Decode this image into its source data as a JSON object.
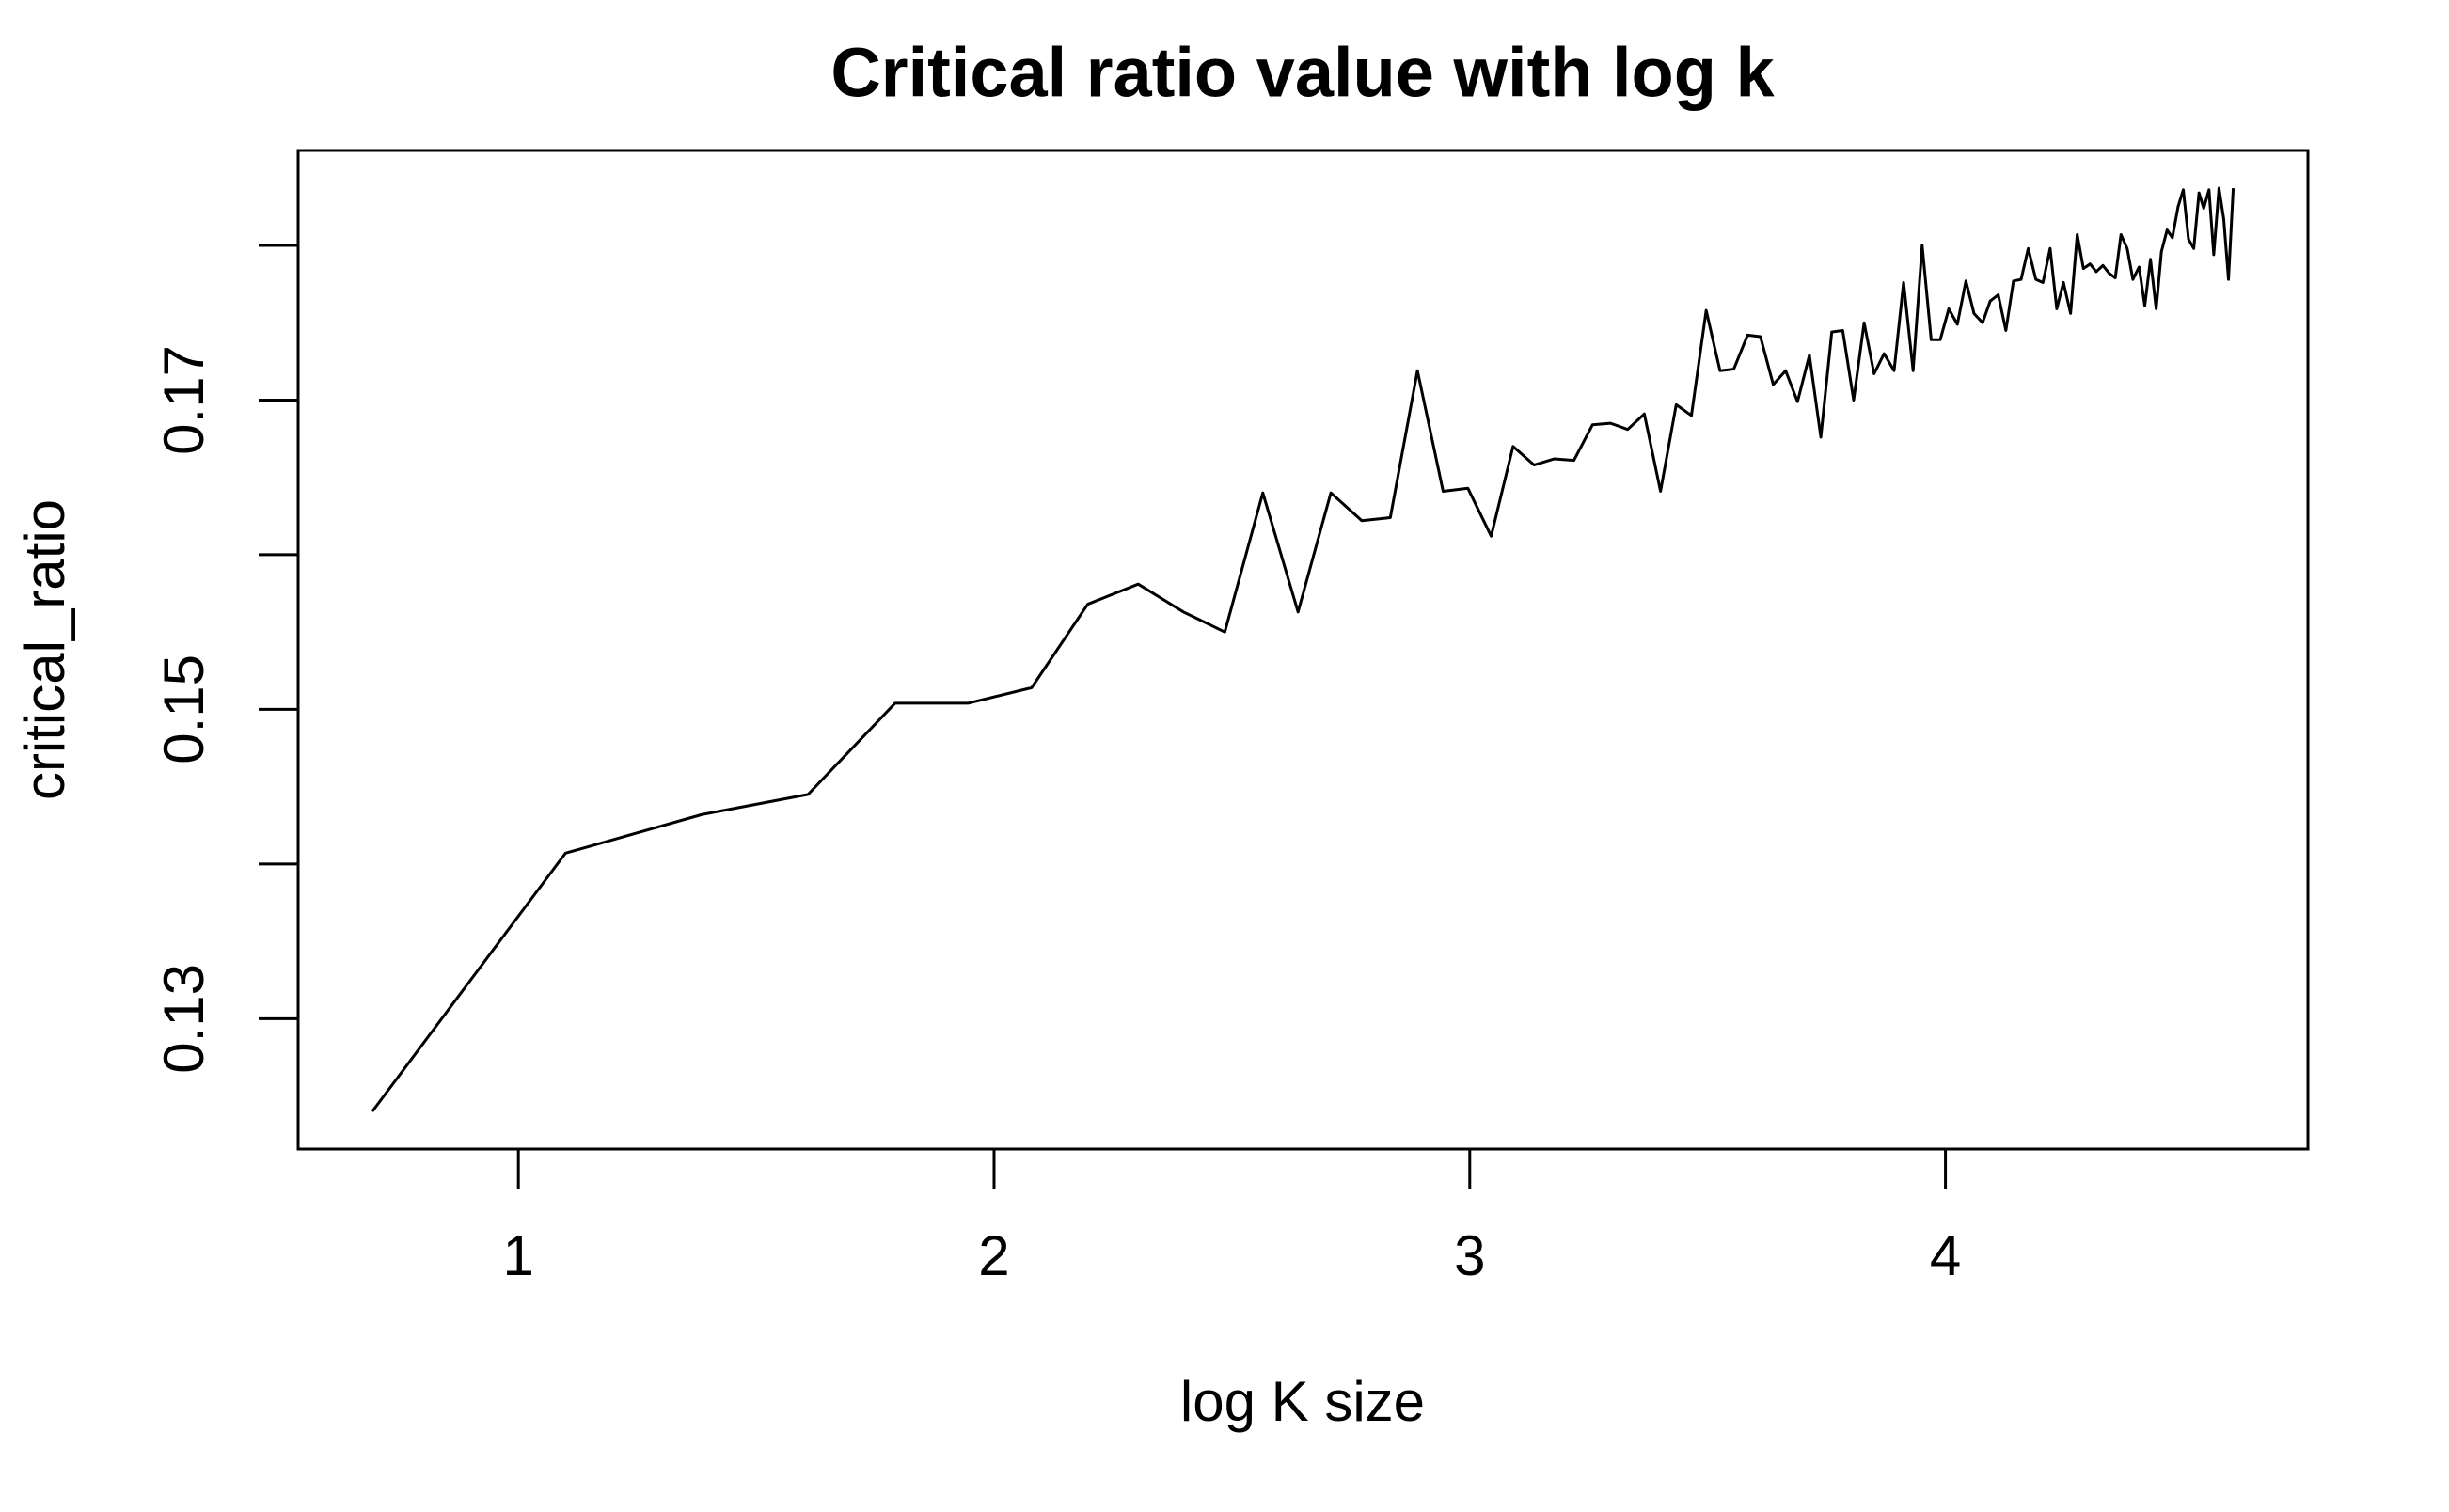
{
  "chart_data": {
    "type": "line",
    "title": "Critical ratio value with log k",
    "x_label": "log K size",
    "y_label": "critical_ratio",
    "color": "#000000",
    "xlim": [
      0.537,
      4.762
    ],
    "ylim": [
      0.12157,
      0.18614
    ],
    "xticks": [
      1,
      2,
      3,
      4
    ],
    "yticks": [
      0.13,
      {
        "value": 0.14,
        "label": null
      },
      0.15,
      {
        "value": 0.16,
        "label": null
      },
      0.17,
      {
        "value": 0.18,
        "label": null
      }
    ],
    "x": [
      0.693,
      1.099,
      1.386,
      1.609,
      1.792,
      1.946,
      2.079,
      2.197,
      2.303,
      2.398,
      2.485,
      2.565,
      2.639,
      2.708,
      2.773,
      2.833,
      2.89,
      2.944,
      2.996,
      3.045,
      3.091,
      3.135,
      3.178,
      3.219,
      3.258,
      3.296,
      3.332,
      3.367,
      3.401,
      3.434,
      3.466,
      3.497,
      3.526,
      3.555,
      3.584,
      3.611,
      3.638,
      3.664,
      3.689,
      3.714,
      3.738,
      3.761,
      3.784,
      3.807,
      3.829,
      3.85,
      3.871,
      3.892,
      3.912,
      3.932,
      3.951,
      3.97,
      3.989,
      4.007,
      4.025,
      4.043,
      4.06,
      4.078,
      4.094,
      4.111,
      4.127,
      4.143,
      4.159,
      4.174,
      4.19,
      4.205,
      4.22,
      4.234,
      4.248,
      4.263,
      4.277,
      4.29,
      4.304,
      4.317,
      4.331,
      4.344,
      4.357,
      4.369,
      4.382,
      4.394,
      4.407,
      4.419,
      4.431,
      4.443,
      4.454,
      4.466,
      4.477,
      4.489,
      4.5,
      4.511,
      4.522,
      4.533,
      4.543,
      4.554,
      4.564,
      4.575,
      4.585,
      4.595,
      4.605
    ],
    "values": [
      0.124,
      0.1407,
      0.1432,
      0.1445,
      0.1504,
      0.1504,
      0.1514,
      0.1568,
      0.1581,
      0.1563,
      0.155,
      0.164,
      0.1563,
      0.164,
      0.1622,
      0.1624,
      0.1719,
      0.1641,
      0.1643,
      0.1612,
      0.167,
      0.1658,
      0.1662,
      0.1661,
      0.1684,
      0.1685,
      0.1681,
      0.1691,
      0.1641,
      0.1697,
      0.169,
      0.1758,
      0.1719,
      0.172,
      0.1742,
      0.1741,
      0.171,
      0.1719,
      0.1699,
      0.1729,
      0.1676,
      0.1744,
      0.1745,
      0.17,
      0.175,
      0.1717,
      0.173,
      0.1719,
      0.1776,
      0.1719,
      0.18,
      0.1739,
      0.1739,
      0.1759,
      0.1749,
      0.1777,
      0.1756,
      0.175,
      0.1764,
      0.1768,
      0.1745,
      0.1777,
      0.1778,
      0.1798,
      0.1778,
      0.1776,
      0.1798,
      0.1759,
      0.1776,
      0.1756,
      0.1807,
      0.1785,
      0.1788,
      0.1783,
      0.1787,
      0.1782,
      0.1779,
      0.1807,
      0.1798,
      0.1778,
      0.1786,
      0.1761,
      0.1791,
      0.1759,
      0.1796,
      0.181,
      0.1805,
      0.1825,
      0.1836,
      0.1804,
      0.1798,
      0.1834,
      0.1824,
      0.1836,
      0.1794,
      0.1837,
      0.1817,
      0.1778,
      0.1837
    ]
  }
}
